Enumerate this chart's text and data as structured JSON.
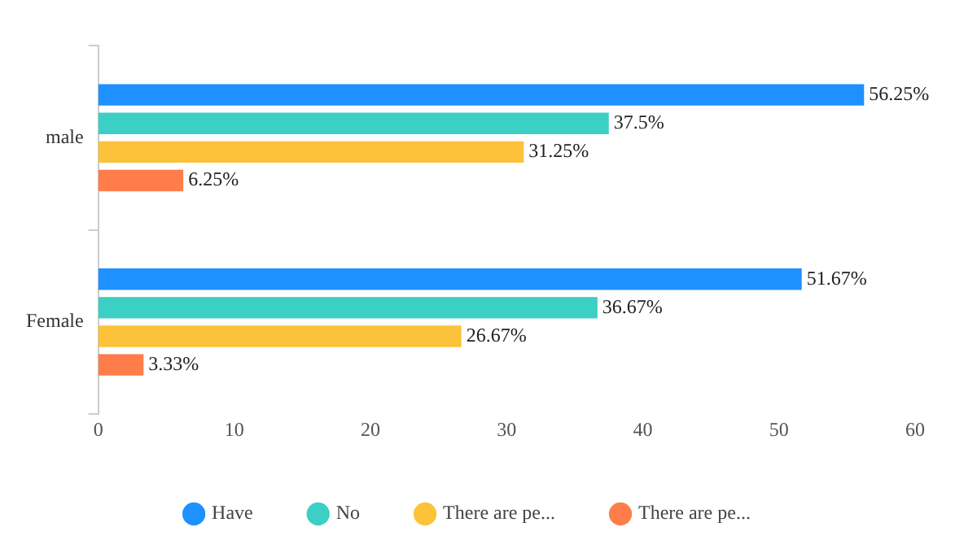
{
  "chart_data": {
    "type": "bar",
    "orientation": "horizontal",
    "categories": [
      "male",
      "Female"
    ],
    "series": [
      {
        "name": "Have",
        "color": "#1e90ff",
        "values": [
          56.25,
          51.67
        ],
        "value_labels": [
          "56.25%",
          "51.67%"
        ]
      },
      {
        "name": "No",
        "color": "#3ccfc6",
        "values": [
          37.5,
          36.67
        ],
        "value_labels": [
          "37.5%",
          "36.67%"
        ]
      },
      {
        "name": "There are pe...",
        "color": "#fcc23a",
        "values": [
          31.25,
          26.67
        ],
        "value_labels": [
          "31.25%",
          "26.67%"
        ]
      },
      {
        "name": "There are pe...",
        "color": "#ff7d4a",
        "values": [
          6.25,
          3.33
        ],
        "value_labels": [
          "6.25%",
          "3.33%"
        ]
      }
    ],
    "xlim": [
      0,
      60
    ],
    "xticks": [
      0,
      10,
      20,
      30,
      40,
      50,
      60
    ],
    "legend": "bottom",
    "marker": "circle"
  }
}
